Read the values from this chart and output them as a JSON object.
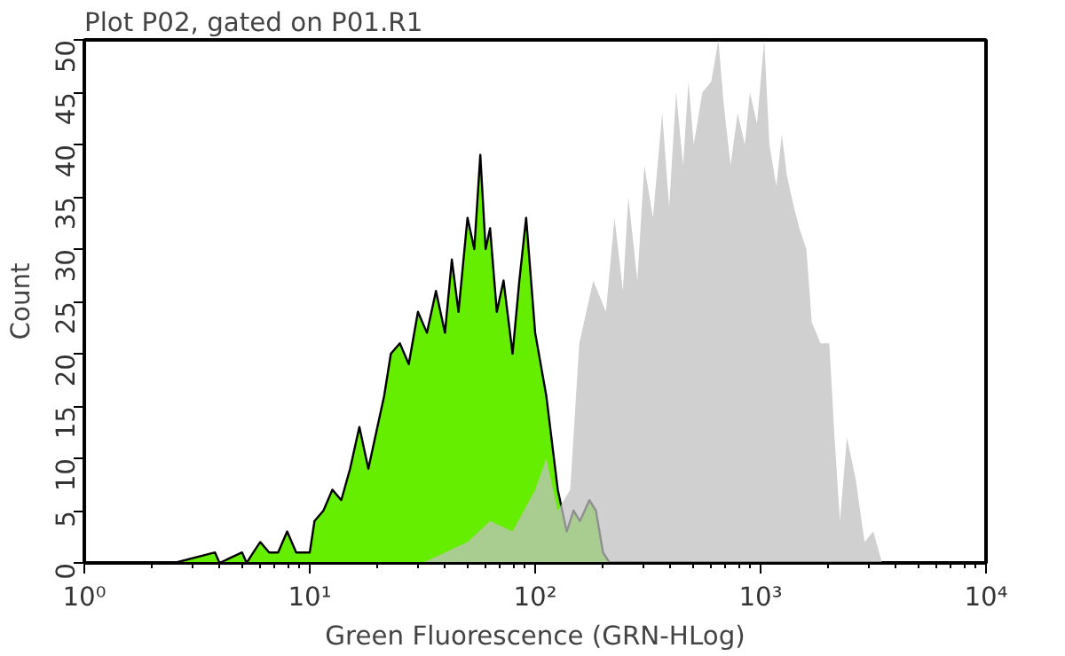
{
  "chart_data": {
    "type": "area",
    "title": "Plot P02, gated on P01.R1",
    "xlabel": "Green Fluorescence (GRN-HLog)",
    "ylabel": "Count",
    "log": "x",
    "grid": false,
    "xlim": [
      1,
      10000
    ],
    "ylim": [
      0,
      50
    ],
    "xticks": [
      {
        "value": 1,
        "label": "10⁰"
      },
      {
        "value": 2,
        "label": null
      },
      {
        "value": 3,
        "label": null
      },
      {
        "value": 4,
        "label": null
      },
      {
        "value": 5,
        "label": null
      },
      {
        "value": 6,
        "label": null
      },
      {
        "value": 7,
        "label": null
      },
      {
        "value": 8,
        "label": null
      },
      {
        "value": 9,
        "label": null
      },
      {
        "value": 10,
        "label": "10¹"
      },
      {
        "value": 20,
        "label": null
      },
      {
        "value": 30,
        "label": null
      },
      {
        "value": 40,
        "label": null
      },
      {
        "value": 50,
        "label": null
      },
      {
        "value": 60,
        "label": null
      },
      {
        "value": 70,
        "label": null
      },
      {
        "value": 80,
        "label": null
      },
      {
        "value": 90,
        "label": null
      },
      {
        "value": 100,
        "label": "10²"
      },
      {
        "value": 200,
        "label": null
      },
      {
        "value": 300,
        "label": null
      },
      {
        "value": 400,
        "label": null
      },
      {
        "value": 500,
        "label": null
      },
      {
        "value": 600,
        "label": null
      },
      {
        "value": 700,
        "label": null
      },
      {
        "value": 800,
        "label": null
      },
      {
        "value": 900,
        "label": null
      },
      {
        "value": 1000,
        "label": "10³"
      },
      {
        "value": 2000,
        "label": null
      },
      {
        "value": 3000,
        "label": null
      },
      {
        "value": 4000,
        "label": null
      },
      {
        "value": 5000,
        "label": null
      },
      {
        "value": 6000,
        "label": null
      },
      {
        "value": 7000,
        "label": null
      },
      {
        "value": 8000,
        "label": null
      },
      {
        "value": 9000,
        "label": null
      },
      {
        "value": 10000,
        "label": "10⁴"
      }
    ],
    "yticks": [
      0,
      5,
      10,
      15,
      20,
      25,
      30,
      35,
      40,
      45,
      50
    ],
    "series": [
      {
        "color": "#66ee00",
        "x": [
          1,
          2.51,
          3.8,
          3.98,
          5.01,
          5.25,
          5.62,
          6.03,
          6.61,
          7.24,
          7.94,
          8.71,
          10,
          10.5,
          11.5,
          12.6,
          13.8,
          15.1,
          16.6,
          18.2,
          19.5,
          21.4,
          22.9,
          25.1,
          27.5,
          30.2,
          33.1,
          36.3,
          39.8,
          42.7,
          45.7,
          50.1,
          53.7,
          57.1,
          60.3,
          63.1,
          67.6,
          72.4,
          79.4,
          85.1,
          91.2,
          100,
          112,
          126,
          138,
          148,
          158,
          174,
          186,
          200,
          214,
          251,
          10000
        ],
        "values": [
          0,
          0,
          1,
          0,
          1,
          0,
          1,
          2,
          1,
          1,
          3,
          1,
          1,
          4,
          5,
          7,
          6,
          9,
          13,
          9,
          12,
          16,
          20,
          21,
          19,
          24,
          22,
          26,
          22,
          29,
          24,
          33,
          30,
          39,
          30,
          32,
          24,
          27,
          20,
          27,
          33,
          22,
          16,
          7,
          3,
          5,
          4,
          6,
          5,
          1,
          0,
          0,
          0
        ]
      },
      {
        "color": "#c0c0c0",
        "x": [
          31.6,
          39.8,
          50.1,
          63.1,
          79.4,
          100,
          112,
          126,
          143,
          157,
          181,
          206,
          225,
          245,
          259,
          284,
          305,
          333,
          366,
          393,
          422,
          453,
          479,
          505,
          552,
          604,
          650,
          685,
          736,
          791,
          851,
          897,
          964,
          1038,
          1094,
          1175,
          1242,
          1309,
          1406,
          1486,
          1596,
          1687,
          1845,
          2018,
          2128,
          2249,
          2415,
          2642,
          2891,
          3162,
          3459,
          3981
        ],
        "values": [
          0,
          1,
          2,
          4,
          3,
          7,
          10,
          5,
          7,
          21,
          27,
          24,
          33,
          26,
          35,
          27,
          38,
          33,
          43,
          34,
          45,
          38,
          46,
          40,
          45,
          46,
          50,
          44,
          38,
          43,
          40,
          45,
          42,
          50,
          40,
          36,
          41,
          37,
          34,
          32,
          30,
          23,
          21,
          21,
          12,
          4,
          12,
          8,
          2,
          3,
          0,
          0
        ]
      }
    ]
  }
}
